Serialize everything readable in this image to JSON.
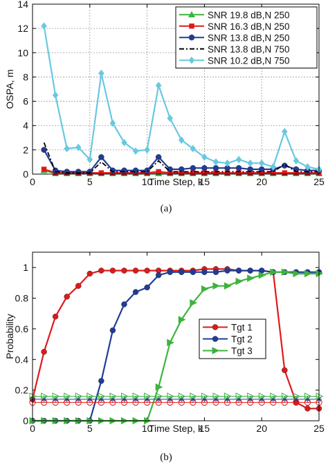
{
  "chart_data": [
    {
      "type": "line",
      "caption": "(a)",
      "xlabel": "Time Step, k",
      "ylabel": "OSPA, m",
      "xlim": [
        0,
        25
      ],
      "ylim": [
        0,
        14
      ],
      "xticks": [
        0,
        5,
        10,
        15,
        20,
        25
      ],
      "yticks": [
        0,
        2,
        4,
        6,
        8,
        10,
        12,
        14
      ],
      "grid": true,
      "legend": "top-right",
      "x": [
        1,
        2,
        3,
        4,
        5,
        6,
        7,
        8,
        9,
        10,
        11,
        12,
        13,
        14,
        15,
        16,
        17,
        18,
        19,
        20,
        21,
        22,
        23,
        24,
        25
      ],
      "series": [
        {
          "name": "SNR 19.8 dB,N 250",
          "color": "#3cb43c",
          "marker": "triangle-up",
          "dash": "solid",
          "values": [
            0.3,
            0.05,
            0.05,
            0.05,
            0.05,
            0.05,
            0.05,
            0.05,
            0.05,
            0.05,
            0.05,
            0.05,
            0.05,
            0.05,
            0.05,
            0.05,
            0.05,
            0.05,
            0.05,
            0.05,
            0.05,
            0.05,
            0.05,
            0.05,
            0.05
          ]
        },
        {
          "name": "SNR 16.3 dB,N 250",
          "color": "#e01818",
          "marker": "square",
          "dash": "solid",
          "values": [
            0.4,
            0.1,
            0.1,
            0.1,
            0.1,
            0.1,
            0.1,
            0.1,
            0.1,
            0.1,
            0.2,
            0.1,
            0.1,
            0.1,
            0.1,
            0.1,
            0.1,
            0.1,
            0.1,
            0.1,
            0.1,
            0.1,
            0.1,
            0.1,
            0.1
          ]
        },
        {
          "name": "SNR 13.8 dB,N 250",
          "color": "#1f3c9a",
          "marker": "circle",
          "dash": "solid",
          "values": [
            2.0,
            0.3,
            0.2,
            0.2,
            0.2,
            1.4,
            0.3,
            0.3,
            0.3,
            0.3,
            1.4,
            0.4,
            0.4,
            0.5,
            0.5,
            0.5,
            0.5,
            0.5,
            0.4,
            0.4,
            0.4,
            0.7,
            0.4,
            0.3,
            0.3
          ]
        },
        {
          "name": "SNR 13.8 dB,N 750",
          "color": "#000000",
          "marker": "none",
          "dash": "dashdot",
          "values": [
            2.6,
            0.2,
            0.1,
            0.1,
            0.1,
            1.0,
            0.2,
            0.2,
            0.2,
            0.2,
            1.1,
            0.2,
            0.2,
            0.2,
            0.2,
            0.2,
            0.2,
            0.2,
            0.2,
            0.2,
            0.2,
            0.8,
            0.2,
            0.2,
            0.2
          ]
        },
        {
          "name": "SNR 10.2 dB,N 750",
          "color": "#68c8e0",
          "marker": "diamond",
          "dash": "solid",
          "values": [
            12.2,
            6.5,
            2.1,
            2.2,
            1.2,
            8.3,
            4.2,
            2.6,
            1.9,
            2.0,
            7.3,
            4.6,
            2.8,
            2.1,
            1.4,
            1.0,
            0.9,
            1.2,
            0.9,
            0.9,
            0.6,
            3.5,
            1.1,
            0.6,
            0.4
          ]
        }
      ]
    },
    {
      "type": "line",
      "caption": "(b)",
      "xlabel": "Time Step, k",
      "ylabel": "Probability",
      "xlim": [
        0,
        25
      ],
      "ylim": [
        0,
        1.1
      ],
      "xticks": [
        0,
        5,
        10,
        15,
        20,
        25
      ],
      "yticks": [
        0,
        0.2,
        0.4,
        0.6,
        0.8,
        1
      ],
      "grid": false,
      "legend": "center-right",
      "x": [
        0,
        1,
        2,
        3,
        4,
        5,
        6,
        7,
        8,
        9,
        10,
        11,
        12,
        13,
        14,
        15,
        16,
        17,
        18,
        19,
        20,
        21,
        22,
        23,
        24,
        25
      ],
      "series": [
        {
          "name": "Tgt 1",
          "color": "#e01818",
          "marker": "circle",
          "dash": "solid",
          "in_legend": true,
          "values": [
            0.14,
            0.45,
            0.68,
            0.81,
            0.88,
            0.96,
            0.98,
            0.98,
            0.98,
            0.98,
            0.98,
            0.98,
            0.98,
            0.98,
            0.98,
            0.99,
            0.99,
            0.99,
            0.98,
            0.98,
            0.98,
            0.97,
            0.33,
            0.12,
            0.08,
            0.08
          ]
        },
        {
          "name": "Tgt 2",
          "color": "#1f3c9a",
          "marker": "circle",
          "dash": "solid",
          "in_legend": true,
          "values": [
            0,
            0,
            0,
            0,
            0,
            0,
            0.26,
            0.59,
            0.76,
            0.84,
            0.87,
            0.95,
            0.97,
            0.97,
            0.97,
            0.97,
            0.97,
            0.98,
            0.98,
            0.98,
            0.98,
            0.97,
            0.97,
            0.97,
            0.97,
            0.97
          ]
        },
        {
          "name": "Tgt 3",
          "color": "#3cb43c",
          "marker": "triangle-right",
          "dash": "solid",
          "in_legend": true,
          "values": [
            0,
            0,
            0,
            0,
            0,
            0,
            0,
            0,
            0,
            0,
            0,
            0.22,
            0.51,
            0.66,
            0.77,
            0.86,
            0.88,
            0.88,
            0.91,
            0.93,
            0.95,
            0.97,
            0.97,
            0.96,
            0.96,
            0.96
          ]
        },
        {
          "name": "",
          "color": "#e01818",
          "marker": "open-circle",
          "dash": "solid",
          "in_legend": false,
          "values": [
            0.12,
            0.12,
            0.12,
            0.12,
            0.12,
            0.12,
            0.12,
            0.12,
            0.12,
            0.12,
            0.12,
            0.12,
            0.12,
            0.12,
            0.12,
            0.12,
            0.12,
            0.12,
            0.12,
            0.12,
            0.12,
            0.12,
            0.12,
            0.12,
            0.12,
            0.12
          ]
        },
        {
          "name": "",
          "color": "#1f3c9a",
          "marker": "star",
          "dash": "solid",
          "in_legend": false,
          "values": [
            0.14,
            0.14,
            0.14,
            0.14,
            0.14,
            0.14,
            0.14,
            0.14,
            0.14,
            0.14,
            0.14,
            0.14,
            0.14,
            0.14,
            0.14,
            0.14,
            0.14,
            0.14,
            0.14,
            0.14,
            0.14,
            0.14,
            0.14,
            0.14,
            0.14,
            0.14
          ]
        },
        {
          "name": "",
          "color": "#3cb43c",
          "marker": "open-triangle-right",
          "dash": "solid",
          "in_legend": false,
          "values": [
            0.16,
            0.16,
            0.16,
            0.16,
            0.16,
            0.16,
            0.16,
            0.16,
            0.16,
            0.16,
            0.16,
            0.16,
            0.16,
            0.16,
            0.16,
            0.16,
            0.16,
            0.16,
            0.16,
            0.16,
            0.16,
            0.16,
            0.16,
            0.16,
            0.16,
            0.16
          ]
        }
      ]
    }
  ]
}
